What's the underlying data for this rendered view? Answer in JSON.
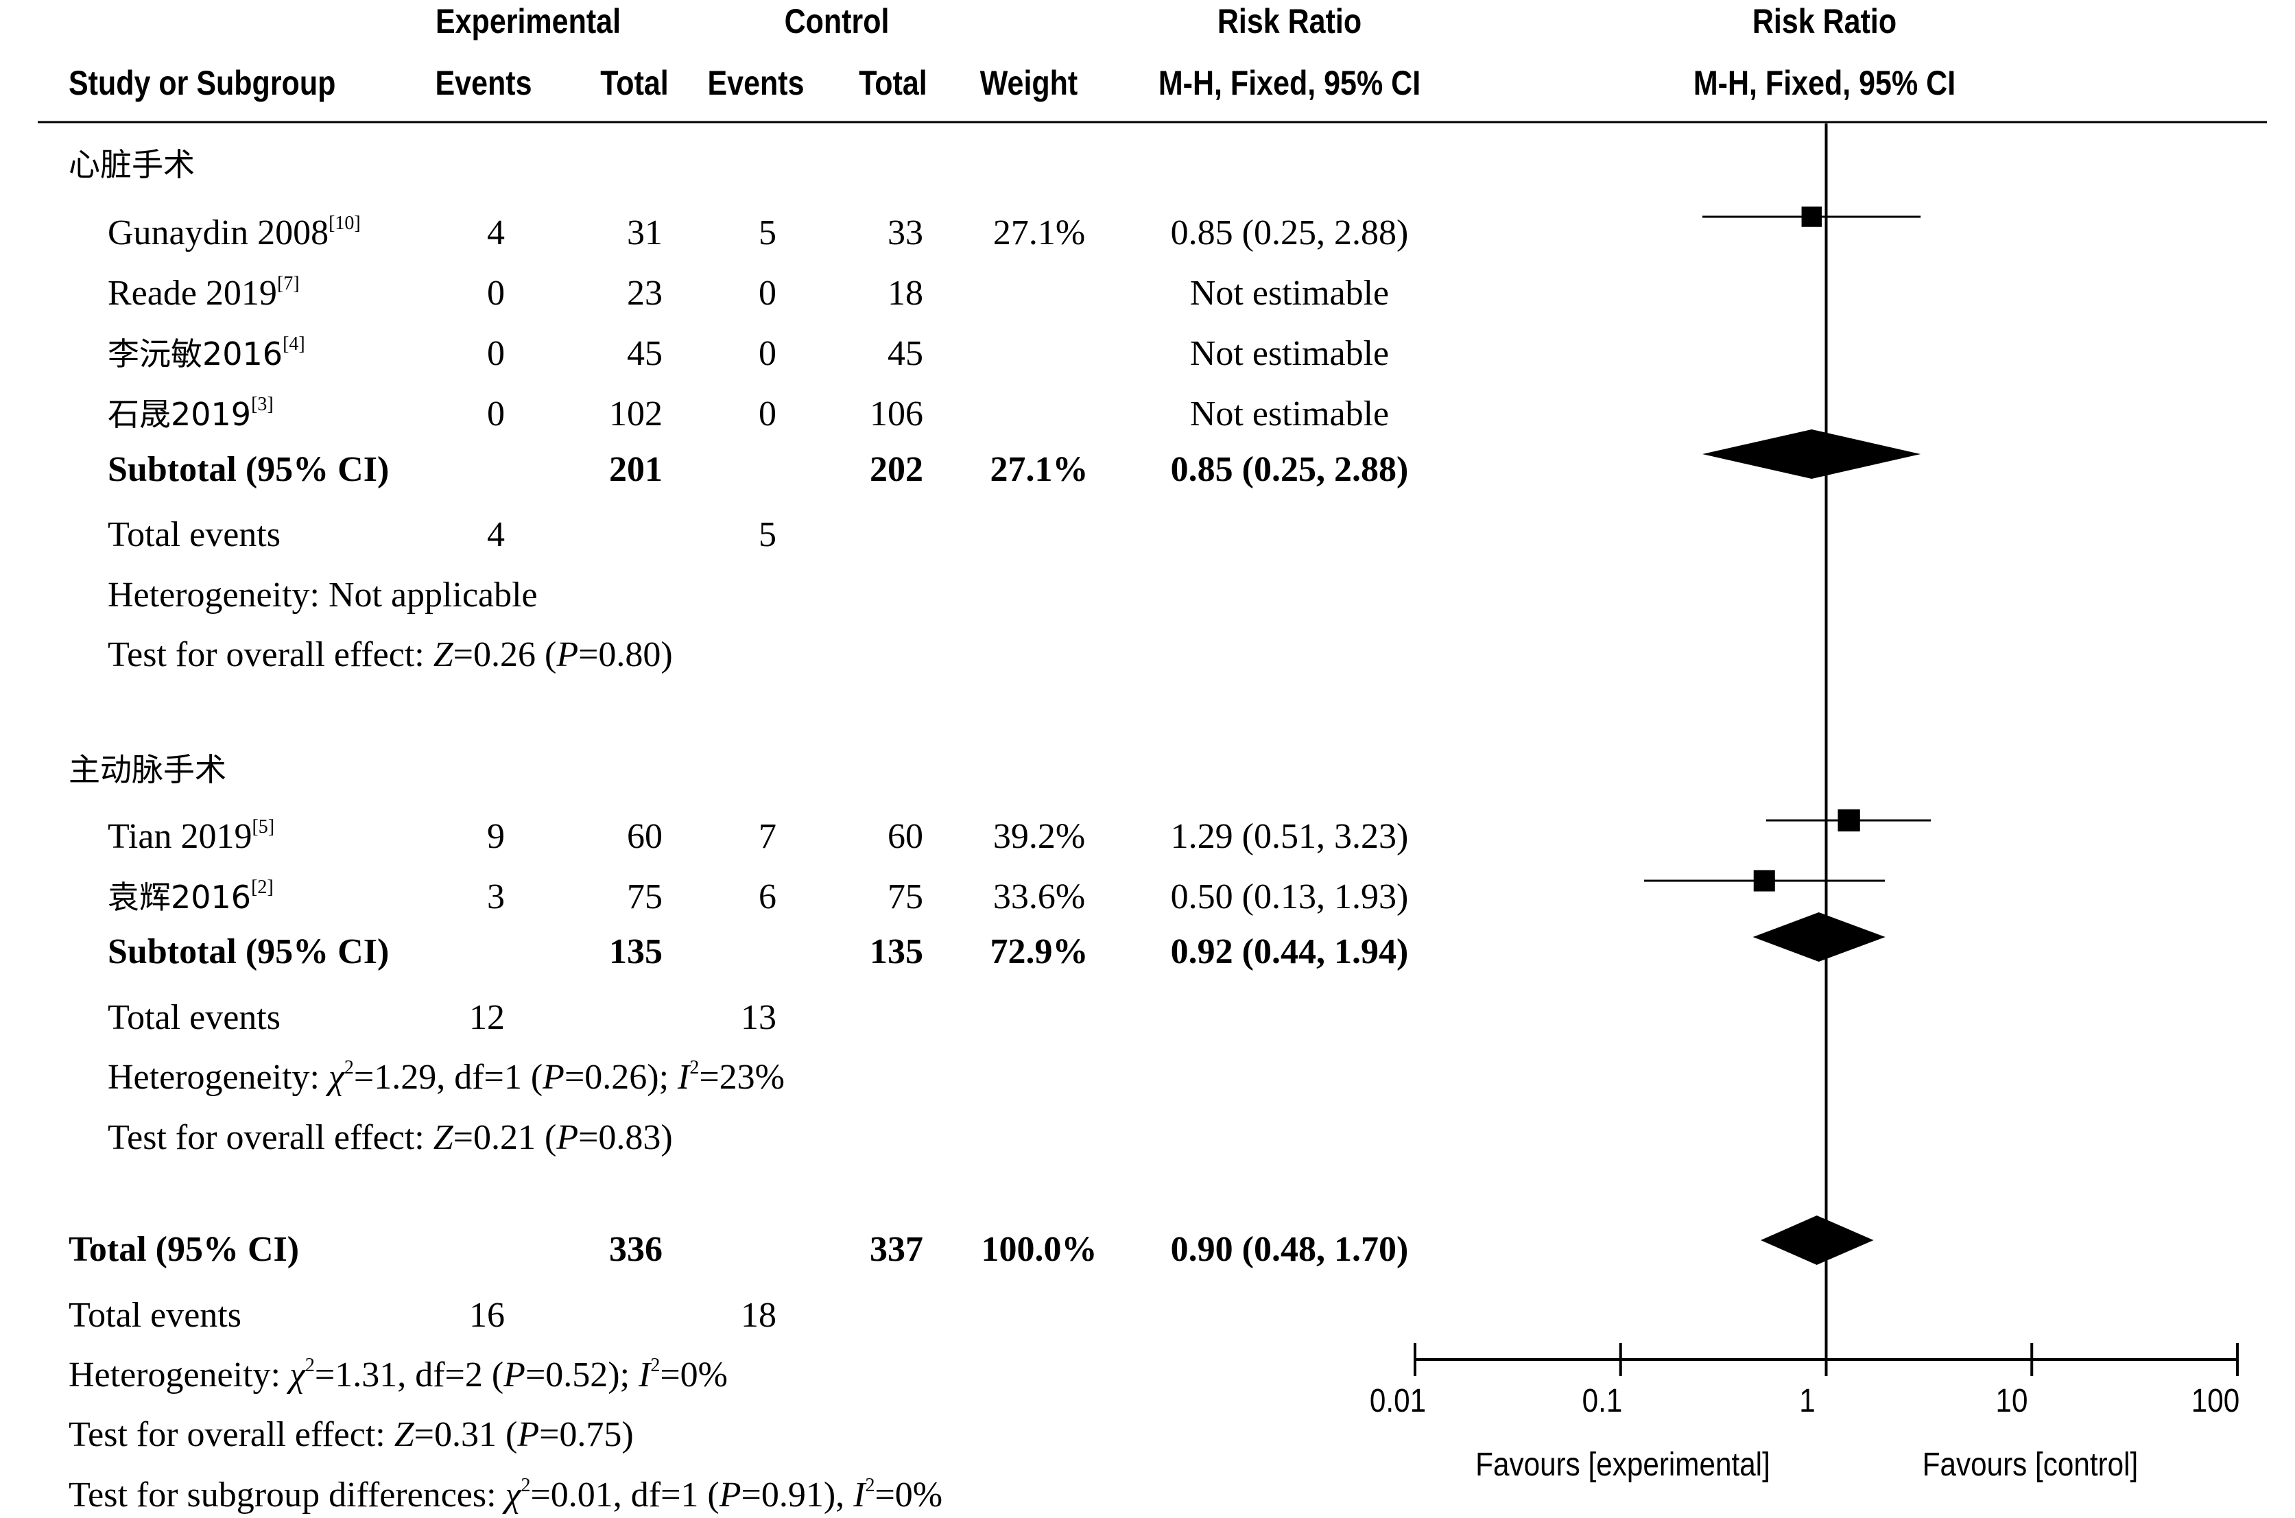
{
  "chart_data": {
    "type": "forest",
    "scale": "log",
    "xlim": [
      0.01,
      100
    ],
    "xticks": [
      "0.01",
      "0.1",
      "1",
      "10",
      "100"
    ],
    "favours_left": "Favours [experimental]",
    "favours_right": "Favours [control]",
    "headers": {
      "experimental": "Experimental",
      "control": "Control",
      "risk_ratio_1": "Risk Ratio",
      "risk_ratio_2": "Risk Ratio",
      "study": "Study or Subgroup",
      "events_e": "Events",
      "total_e": "Total",
      "events_c": "Events",
      "total_c": "Total",
      "weight": "Weight",
      "method_1": "M-H, Fixed, 95% CI",
      "method_2": "M-H, Fixed, 95% CI"
    },
    "subgroups": [
      {
        "name": "心脏手术",
        "studies": [
          {
            "name": "Gunaydin 2008",
            "ref": "[10]",
            "e_events": "4",
            "e_total": "31",
            "c_events": "5",
            "c_total": "33",
            "weight": "27.1%",
            "ci_text": "0.85 (0.25, 2.88)",
            "rr": 0.85,
            "lo": 0.25,
            "hi": 2.88,
            "w": 27.1
          },
          {
            "name": "Reade 2019",
            "ref": "[7]",
            "e_events": "0",
            "e_total": "23",
            "c_events": "0",
            "c_total": "18",
            "weight": "",
            "ci_text": "Not estimable"
          },
          {
            "name": "李沅敏2016",
            "ref": "[4]",
            "e_events": "0",
            "e_total": "45",
            "c_events": "0",
            "c_total": "45",
            "weight": "",
            "ci_text": "Not estimable"
          },
          {
            "name": "石晟2019",
            "ref": "[3]",
            "e_events": "0",
            "e_total": "102",
            "c_events": "0",
            "c_total": "106",
            "weight": "",
            "ci_text": "Not estimable"
          }
        ],
        "subtotal": {
          "label": "Subtotal (95% CI)",
          "e_total": "201",
          "c_total": "202",
          "weight": "27.1%",
          "ci_text": "0.85 (0.25, 2.88)",
          "rr": 0.85,
          "lo": 0.25,
          "hi": 2.88
        },
        "total_events": {
          "label": "Total events",
          "e": "4",
          "c": "5"
        },
        "heterogeneity": "Heterogeneity: Not applicable",
        "overall_effect": {
          "prefix": "Test for overall effect: ",
          "z": "Z",
          "z_val": "=0.26 (",
          "p": "P",
          "p_val": "=0.80)"
        }
      },
      {
        "name": "主动脉手术",
        "studies": [
          {
            "name": "Tian 2019",
            "ref": "[5]",
            "e_events": "9",
            "e_total": "60",
            "c_events": "7",
            "c_total": "60",
            "weight": "39.2%",
            "ci_text": "1.29 (0.51, 3.23)",
            "rr": 1.29,
            "lo": 0.51,
            "hi": 3.23,
            "w": 39.2
          },
          {
            "name": "袁辉2016",
            "ref": "[2]",
            "e_events": "3",
            "e_total": "75",
            "c_events": "6",
            "c_total": "75",
            "weight": "33.6%",
            "ci_text": "0.50 (0.13, 1.93)",
            "rr": 0.5,
            "lo": 0.13,
            "hi": 1.93,
            "w": 33.6
          }
        ],
        "subtotal": {
          "label": "Subtotal (95% CI)",
          "e_total": "135",
          "c_total": "135",
          "weight": "72.9%",
          "ci_text": "0.92 (0.44, 1.94)",
          "rr": 0.92,
          "lo": 0.44,
          "hi": 1.94
        },
        "total_events": {
          "label": "Total events",
          "e": "12",
          "c": "13"
        },
        "heterogeneity": {
          "prefix": "Heterogeneity: ",
          "chi": "χ",
          "chi_rest": "=1.29, df=1 (",
          "p": "P",
          "p_val": "=0.26); ",
          "i": "I",
          "i_rest": "=23%"
        },
        "overall_effect": {
          "prefix": "Test for overall effect: ",
          "z": "Z",
          "z_val": "=0.21 (",
          "p": "P",
          "p_val": "=0.83)"
        }
      }
    ],
    "total": {
      "label": "Total (95% CI)",
      "e_total": "336",
      "c_total": "337",
      "weight": "100.0%",
      "ci_text": "0.90 (0.48, 1.70)",
      "rr": 0.9,
      "lo": 0.48,
      "hi": 1.7
    },
    "total_events": {
      "label": "Total events",
      "e": "16",
      "c": "18"
    },
    "heterogeneity": {
      "prefix": "Heterogeneity: ",
      "chi": "χ",
      "chi_rest": "=1.31, df=2 (",
      "p": "P",
      "p_val": "=0.52); ",
      "i": "I",
      "i_rest": "=0%"
    },
    "overall_effect": {
      "prefix": "Test for overall effect: ",
      "z": "Z",
      "z_val": "=0.31 (",
      "p": "P",
      "p_val": "=0.75)"
    },
    "subgroup_diff": {
      "prefix": "Test for subgroup differences: ",
      "chi": "χ",
      "chi_rest": "=0.01, df=1 (",
      "p": "P",
      "p_val": "=0.91), ",
      "i": "I",
      "i_rest": "=0%"
    },
    "sup2": "2"
  }
}
